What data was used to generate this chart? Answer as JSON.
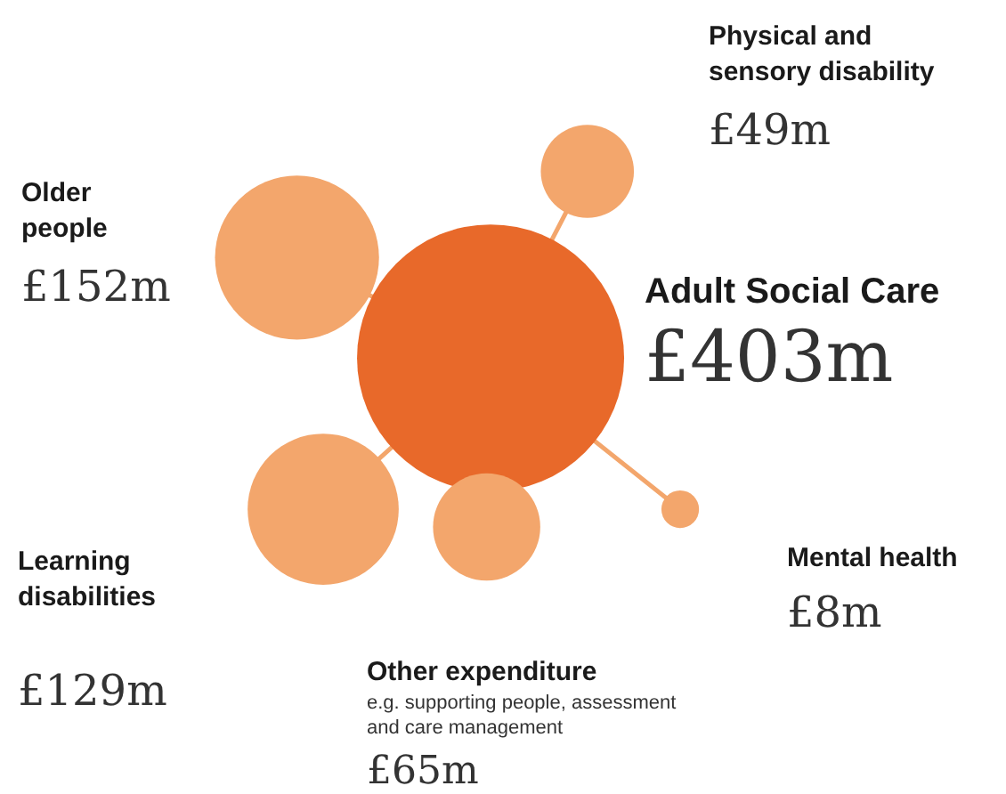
{
  "chart_data": {
    "type": "other",
    "categories": [
      "Adult Social Care",
      "Older people",
      "Physical and sensory disability",
      "Mental health",
      "Other expenditure",
      "Learning disabilities"
    ],
    "values": [
      403,
      152,
      49,
      8,
      65,
      129
    ],
    "value_labels": [
      "£403m",
      "£152m",
      "£49m",
      "£8m",
      "£65m",
      "£129m"
    ],
    "colors": [
      "#e8692a",
      "#f3a66c",
      "#f3a66c",
      "#f3a66c",
      "#f3a66c",
      "#f3a66c"
    ],
    "annotations": [
      {
        "text": "e.g. supporting people, assessment and care management",
        "x": "Other expenditure"
      }
    ]
  }
}
